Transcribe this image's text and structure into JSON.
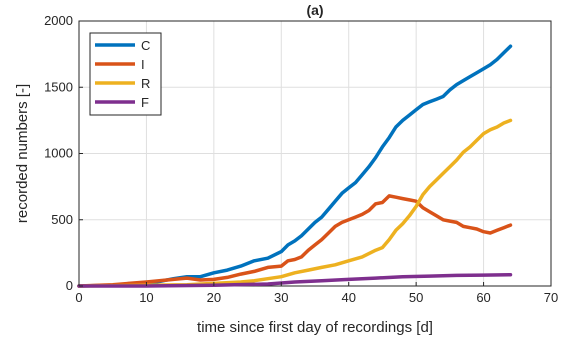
{
  "chart_data": {
    "type": "line",
    "title": "(a)",
    "xlabel": "time since first day of recordings [d]",
    "ylabel": "recorded numbers [-]",
    "xlim": [
      0,
      70
    ],
    "ylim": [
      0,
      2000
    ],
    "xticks": [
      0,
      10,
      20,
      30,
      40,
      50,
      60,
      70
    ],
    "yticks": [
      0,
      500,
      1000,
      1500,
      2000
    ],
    "grid": true,
    "legend_position": "top-left",
    "series": [
      {
        "name": "C",
        "color": "#0072BD",
        "points": [
          [
            0,
            0
          ],
          [
            5,
            5
          ],
          [
            10,
            20
          ],
          [
            12,
            35
          ],
          [
            14,
            55
          ],
          [
            16,
            70
          ],
          [
            18,
            70
          ],
          [
            20,
            100
          ],
          [
            22,
            120
          ],
          [
            24,
            150
          ],
          [
            26,
            190
          ],
          [
            28,
            210
          ],
          [
            30,
            260
          ],
          [
            31,
            310
          ],
          [
            32,
            340
          ],
          [
            33,
            380
          ],
          [
            34,
            430
          ],
          [
            35,
            480
          ],
          [
            36,
            520
          ],
          [
            37,
            580
          ],
          [
            38,
            640
          ],
          [
            39,
            700
          ],
          [
            40,
            740
          ],
          [
            41,
            780
          ],
          [
            42,
            840
          ],
          [
            43,
            900
          ],
          [
            44,
            970
          ],
          [
            45,
            1050
          ],
          [
            46,
            1120
          ],
          [
            47,
            1200
          ],
          [
            48,
            1250
          ],
          [
            49,
            1290
          ],
          [
            50,
            1330
          ],
          [
            51,
            1370
          ],
          [
            52,
            1390
          ],
          [
            53,
            1410
          ],
          [
            54,
            1430
          ],
          [
            55,
            1480
          ],
          [
            56,
            1520
          ],
          [
            57,
            1550
          ],
          [
            58,
            1580
          ],
          [
            59,
            1610
          ],
          [
            60,
            1640
          ],
          [
            61,
            1670
          ],
          [
            62,
            1710
          ],
          [
            63,
            1760
          ],
          [
            64,
            1810
          ]
        ]
      },
      {
        "name": "I",
        "color": "#D95319",
        "points": [
          [
            0,
            0
          ],
          [
            5,
            10
          ],
          [
            10,
            30
          ],
          [
            14,
            50
          ],
          [
            16,
            60
          ],
          [
            18,
            45
          ],
          [
            20,
            50
          ],
          [
            22,
            65
          ],
          [
            24,
            90
          ],
          [
            26,
            110
          ],
          [
            28,
            140
          ],
          [
            30,
            150
          ],
          [
            31,
            190
          ],
          [
            32,
            200
          ],
          [
            33,
            220
          ],
          [
            34,
            270
          ],
          [
            35,
            310
          ],
          [
            36,
            350
          ],
          [
            37,
            400
          ],
          [
            38,
            450
          ],
          [
            39,
            480
          ],
          [
            40,
            500
          ],
          [
            41,
            520
          ],
          [
            42,
            540
          ],
          [
            43,
            570
          ],
          [
            44,
            620
          ],
          [
            45,
            630
          ],
          [
            46,
            680
          ],
          [
            47,
            670
          ],
          [
            48,
            660
          ],
          [
            49,
            650
          ],
          [
            50,
            640
          ],
          [
            51,
            590
          ],
          [
            52,
            560
          ],
          [
            53,
            530
          ],
          [
            54,
            500
          ],
          [
            55,
            490
          ],
          [
            56,
            480
          ],
          [
            57,
            450
          ],
          [
            58,
            440
          ],
          [
            59,
            430
          ],
          [
            60,
            410
          ],
          [
            61,
            400
          ],
          [
            62,
            420
          ],
          [
            63,
            440
          ],
          [
            64,
            460
          ]
        ]
      },
      {
        "name": "R",
        "color": "#EDB120",
        "points": [
          [
            0,
            0
          ],
          [
            10,
            5
          ],
          [
            16,
            10
          ],
          [
            20,
            20
          ],
          [
            24,
            30
          ],
          [
            26,
            40
          ],
          [
            28,
            55
          ],
          [
            30,
            70
          ],
          [
            32,
            100
          ],
          [
            34,
            120
          ],
          [
            36,
            140
          ],
          [
            38,
            160
          ],
          [
            40,
            190
          ],
          [
            42,
            220
          ],
          [
            44,
            270
          ],
          [
            45,
            290
          ],
          [
            46,
            350
          ],
          [
            47,
            420
          ],
          [
            48,
            470
          ],
          [
            49,
            530
          ],
          [
            50,
            600
          ],
          [
            51,
            690
          ],
          [
            52,
            750
          ],
          [
            53,
            800
          ],
          [
            54,
            850
          ],
          [
            55,
            900
          ],
          [
            56,
            950
          ],
          [
            57,
            1010
          ],
          [
            58,
            1050
          ],
          [
            59,
            1100
          ],
          [
            60,
            1150
          ],
          [
            61,
            1180
          ],
          [
            62,
            1200
          ],
          [
            63,
            1230
          ],
          [
            64,
            1250
          ]
        ]
      },
      {
        "name": "F",
        "color": "#7E2F8E",
        "points": [
          [
            0,
            0
          ],
          [
            10,
            0
          ],
          [
            20,
            5
          ],
          [
            28,
            15
          ],
          [
            32,
            30
          ],
          [
            36,
            40
          ],
          [
            40,
            50
          ],
          [
            44,
            60
          ],
          [
            48,
            70
          ],
          [
            52,
            75
          ],
          [
            56,
            80
          ],
          [
            60,
            82
          ],
          [
            64,
            85
          ]
        ]
      }
    ]
  }
}
